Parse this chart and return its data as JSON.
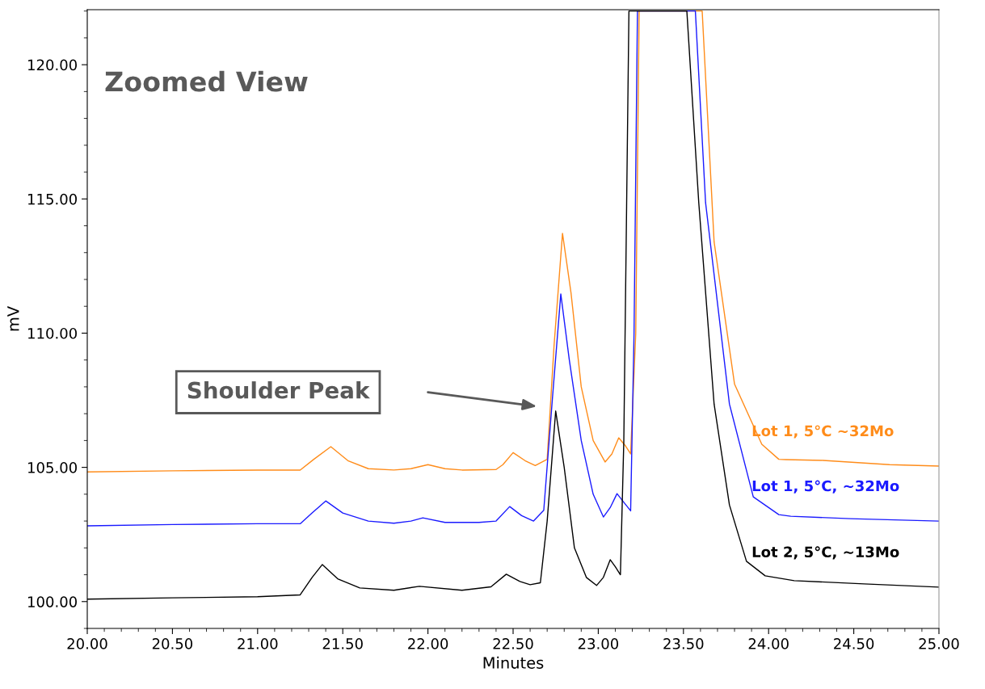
{
  "chart_data": {
    "type": "line",
    "xlabel": "Minutes",
    "ylabel": "mV",
    "xlim": [
      20,
      25
    ],
    "ylim": [
      99.0,
      122.05
    ],
    "xticks": [
      {
        "value": 20,
        "label": "20.00"
      },
      {
        "value": 20.5,
        "label": "20.50"
      },
      {
        "value": 21,
        "label": "21.00"
      },
      {
        "value": 21.5,
        "label": "21.50"
      },
      {
        "value": 22,
        "label": "22.00"
      },
      {
        "value": 22.5,
        "label": "22.50"
      },
      {
        "value": 23,
        "label": "23.00"
      },
      {
        "value": 23.5,
        "label": "23.50"
      },
      {
        "value": 24,
        "label": "24.00"
      },
      {
        "value": 24.5,
        "label": "24.50"
      },
      {
        "value": 25,
        "label": "25.00"
      }
    ],
    "yticks": [
      {
        "value": 100,
        "label": "100.00"
      },
      {
        "value": 105,
        "label": "105.00"
      },
      {
        "value": 110,
        "label": "110.00"
      },
      {
        "value": 115,
        "label": "115.00"
      },
      {
        "value": 120,
        "label": "120.00"
      }
    ],
    "grid": false,
    "legend": false,
    "annotations": [
      "Zoomed View",
      "Shoulder Peak"
    ],
    "series": [
      {
        "name": "Lot 1, 5°C ~32Mo",
        "color": "#ff8c1a",
        "x": [
          20.0,
          20.5,
          21.0,
          21.25,
          21.33,
          21.43,
          21.53,
          21.65,
          21.8,
          21.9,
          22.0,
          22.1,
          22.2,
          22.4,
          22.44,
          22.5,
          22.57,
          22.63,
          22.7,
          22.74,
          22.79,
          22.84,
          22.9,
          22.97,
          23.04,
          23.08,
          23.12,
          23.16,
          23.19,
          23.22,
          23.24,
          23.61,
          23.68,
          23.8,
          23.96,
          24.06,
          24.1,
          24.32,
          24.71,
          25.0
        ],
        "values": [
          104.83,
          104.87,
          104.9,
          104.9,
          105.3,
          105.77,
          105.25,
          104.95,
          104.9,
          104.95,
          105.1,
          104.95,
          104.9,
          104.92,
          105.1,
          105.55,
          105.25,
          105.07,
          105.3,
          109.5,
          113.72,
          111.5,
          108.0,
          106.0,
          105.2,
          105.5,
          106.1,
          105.8,
          105.5,
          110.0,
          122.0,
          122.0,
          113.4,
          108.1,
          105.86,
          105.3,
          105.29,
          105.26,
          105.1,
          105.05
        ]
      },
      {
        "name": "Lot 1, 5°C, ~32Mo",
        "color": "#1a1aff",
        "x": [
          20.0,
          20.5,
          21.0,
          21.25,
          21.32,
          21.4,
          21.5,
          21.65,
          21.8,
          21.9,
          21.97,
          22.1,
          22.3,
          22.4,
          22.48,
          22.55,
          22.62,
          22.68,
          22.73,
          22.78,
          22.83,
          22.9,
          22.97,
          23.03,
          23.07,
          23.11,
          23.15,
          23.19,
          23.21,
          23.23,
          23.57,
          23.63,
          23.77,
          23.91,
          24.06,
          24.13,
          24.48,
          25.0
        ],
        "values": [
          102.82,
          102.87,
          102.9,
          102.9,
          103.3,
          103.75,
          103.3,
          103.0,
          102.92,
          103.0,
          103.12,
          102.95,
          102.95,
          103.0,
          103.54,
          103.2,
          103.0,
          103.4,
          107.5,
          111.46,
          109.0,
          106.0,
          104.0,
          103.15,
          103.5,
          104.02,
          103.7,
          103.38,
          110.0,
          122.0,
          122.0,
          114.86,
          107.36,
          103.9,
          103.24,
          103.18,
          103.09,
          103.0
        ]
      },
      {
        "name": "Lot 2, 5°C, ~13Mo",
        "color": "#000000",
        "x": [
          20.0,
          20.5,
          21.0,
          21.25,
          21.32,
          21.38,
          21.47,
          21.6,
          21.8,
          21.95,
          22.2,
          22.37,
          22.46,
          22.54,
          22.6,
          22.66,
          22.7,
          22.75,
          22.8,
          22.86,
          22.93,
          22.99,
          23.03,
          23.07,
          23.1,
          23.13,
          23.15,
          23.18,
          23.52,
          23.59,
          23.68,
          23.77,
          23.87,
          23.98,
          24.15,
          24.56,
          25.0
        ],
        "values": [
          100.09,
          100.14,
          100.18,
          100.25,
          100.9,
          101.38,
          100.85,
          100.51,
          100.42,
          100.57,
          100.42,
          100.55,
          101.02,
          100.75,
          100.63,
          100.7,
          103.0,
          107.1,
          105.0,
          102.0,
          100.9,
          100.6,
          100.9,
          101.56,
          101.3,
          101.0,
          106.0,
          122.0,
          122.0,
          114.86,
          107.36,
          103.6,
          101.5,
          100.96,
          100.78,
          100.66,
          100.54
        ]
      }
    ]
  }
}
